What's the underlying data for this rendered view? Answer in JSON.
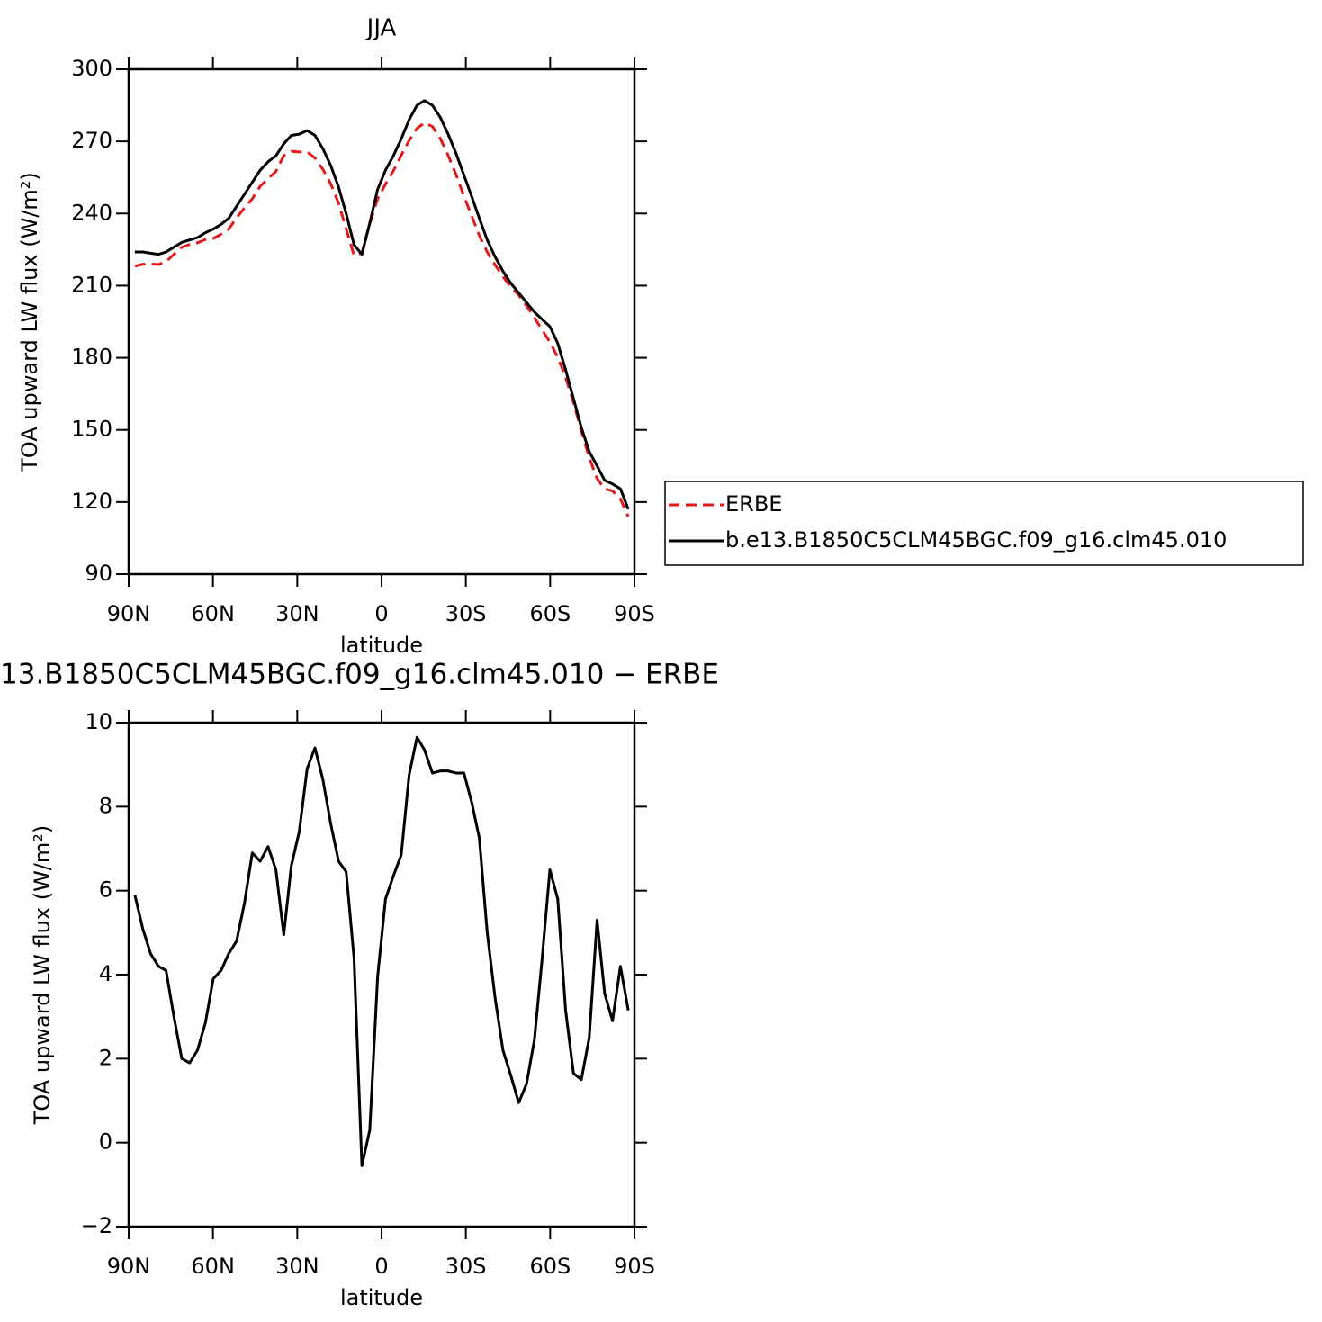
{
  "chart_data": [
    {
      "type": "line",
      "title": "JJA",
      "xlabel": "latitude",
      "ylabel": "TOA upward LW flux (W/m²)",
      "x": [
        87.8,
        85.0,
        82.2,
        79.4,
        76.7,
        73.9,
        71.1,
        68.3,
        65.5,
        62.7,
        59.9,
        57.1,
        54.4,
        51.6,
        48.8,
        46.0,
        43.2,
        40.4,
        37.6,
        34.8,
        32.1,
        29.3,
        26.5,
        23.7,
        20.9,
        18.1,
        15.3,
        12.6,
        9.8,
        7.0,
        4.2,
        1.4,
        -1.4,
        -4.2,
        -7.0,
        -9.8,
        -12.6,
        -15.3,
        -18.1,
        -20.9,
        -23.7,
        -26.5,
        -29.3,
        -32.1,
        -34.8,
        -37.6,
        -40.4,
        -43.2,
        -46.0,
        -48.8,
        -51.6,
        -54.4,
        -57.1,
        -59.9,
        -62.7,
        -65.5,
        -68.3,
        -71.1,
        -73.9,
        -76.7,
        -79.4,
        -82.2,
        -85.0,
        -87.8
      ],
      "series": [
        {
          "name": "ERBE",
          "color": "#e31a1c",
          "linestyle": "dashed",
          "values": [
            218.1,
            218.9,
            219.0,
            218.8,
            219.9,
            223.0,
            226.0,
            227.1,
            227.8,
            229.2,
            229.6,
            231.4,
            233.5,
            238.2,
            242.3,
            246.1,
            251.3,
            254.5,
            257.5,
            264.1,
            265.9,
            265.6,
            265.6,
            263.1,
            258.4,
            252.4,
            244.3,
            233.6,
            222.6,
            223.6,
            235.7,
            246.1,
            252.2,
            257.7,
            264.2,
            270.3,
            275.4,
            277.7,
            276.2,
            271.2,
            264.2,
            256.2,
            247.2,
            238.9,
            230.8,
            224.0,
            218.6,
            213.8,
            209.4,
            206.1,
            201.6,
            196.6,
            191.7,
            186.5,
            180.2,
            171.9,
            161.4,
            149.5,
            138.5,
            129.7,
            125.5,
            124.6,
            121.3,
            113.9
          ]
        },
        {
          "name": "b.e13.B1850C5CLM45BGC.f09_g16.clm45.010",
          "color": "#000000",
          "linestyle": "solid",
          "values": [
            224,
            224,
            223.5,
            223,
            224,
            226,
            228,
            229,
            230,
            232,
            233.5,
            235.5,
            238,
            243,
            248,
            253,
            258,
            261.5,
            264,
            269,
            272.5,
            273,
            274.5,
            272.5,
            267,
            260,
            251,
            240,
            227,
            223,
            236,
            250,
            258,
            264,
            271,
            279,
            285,
            287,
            285,
            280,
            273,
            265,
            256,
            247,
            238,
            229,
            222,
            216,
            211,
            207,
            203,
            199,
            196,
            193,
            186,
            175,
            163,
            151,
            141,
            135,
            129,
            127.5,
            125.5,
            117
          ]
        }
      ],
      "xlim": [
        90,
        -90
      ],
      "xticks": [
        {
          "value": 90,
          "label": "90N"
        },
        {
          "value": 60,
          "label": "60N"
        },
        {
          "value": 30,
          "label": "30N"
        },
        0,
        {
          "value": -30,
          "label": "30S"
        },
        {
          "value": -60,
          "label": "60S"
        },
        {
          "value": -90,
          "label": "90S"
        }
      ],
      "ylim": [
        90,
        300
      ],
      "yticks": [
        90,
        120,
        150,
        180,
        210,
        240,
        270,
        300
      ],
      "legend": "right"
    },
    {
      "type": "line",
      "title": "13.B1850C5CLM45BGC.f09_g16.clm45.010 − ERBE",
      "xlabel": "latitude",
      "ylabel": "TOA upward LW flux (W/m²)",
      "x": [
        87.8,
        85.0,
        82.2,
        79.4,
        76.7,
        73.9,
        71.1,
        68.3,
        65.5,
        62.7,
        59.9,
        57.1,
        54.4,
        51.6,
        48.8,
        46.0,
        43.2,
        40.4,
        37.6,
        34.8,
        32.1,
        29.3,
        26.5,
        23.7,
        20.9,
        18.1,
        15.3,
        12.6,
        9.8,
        7.0,
        4.2,
        1.4,
        -1.4,
        -4.2,
        -7.0,
        -9.8,
        -12.6,
        -15.3,
        -18.1,
        -20.9,
        -23.7,
        -26.5,
        -29.3,
        -32.1,
        -34.8,
        -37.6,
        -40.4,
        -43.2,
        -46.0,
        -48.8,
        -51.6,
        -54.4,
        -57.1,
        -59.9,
        -62.7,
        -65.5,
        -68.3,
        -71.1,
        -73.9,
        -76.7,
        -79.4,
        -82.2,
        -85.0,
        -87.8
      ],
      "series": [
        {
          "color": "#000000",
          "linestyle": "solid",
          "values": [
            5.9,
            5.1,
            4.5,
            4.2,
            4.1,
            3.0,
            2.0,
            1.9,
            2.2,
            2.85,
            3.9,
            4.1,
            4.5,
            4.8,
            5.7,
            6.9,
            6.7,
            7.05,
            6.5,
            4.95,
            6.6,
            7.4,
            8.9,
            9.4,
            8.65,
            7.6,
            6.7,
            6.45,
            4.4,
            -0.55,
            0.3,
            3.95,
            5.8,
            6.35,
            6.85,
            8.75,
            9.65,
            9.35,
            8.8,
            8.85,
            8.85,
            8.8,
            8.8,
            8.1,
            7.25,
            5.0,
            3.45,
            2.2,
            1.6,
            0.95,
            1.4,
            2.45,
            4.35,
            6.5,
            5.8,
            3.15,
            1.65,
            1.5,
            2.5,
            5.3,
            3.55,
            2.9,
            4.2,
            3.15
          ]
        }
      ],
      "xlim": [
        90,
        -90
      ],
      "xticks": [
        {
          "value": 90,
          "label": "90N"
        },
        {
          "value": 60,
          "label": "60N"
        },
        {
          "value": 30,
          "label": "30N"
        },
        0,
        {
          "value": -30,
          "label": "30S"
        },
        {
          "value": -60,
          "label": "60S"
        },
        {
          "value": -90,
          "label": "90S"
        }
      ],
      "ylim": [
        -2,
        10
      ],
      "yticks": [
        {
          "value": -2,
          "label": "−2"
        },
        0,
        2,
        4,
        6,
        8,
        10
      ]
    }
  ]
}
